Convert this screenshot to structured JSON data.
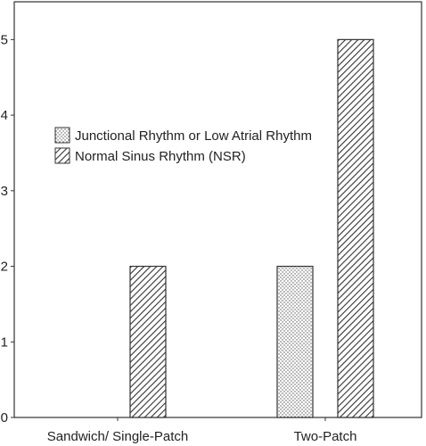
{
  "chart_data": {
    "type": "bar",
    "categories": [
      "Sandwich/ Single-Patch",
      "Two-Patch"
    ],
    "series": [
      {
        "name": "Junctional Rhythm or Low Atrial Rhythm",
        "values": [
          0,
          2
        ],
        "pattern": "dotted"
      },
      {
        "name": "Normal Sinus Rhythm (NSR)",
        "values": [
          2,
          5
        ],
        "pattern": "diagonal-hatch"
      }
    ],
    "y_ticks": [
      "0",
      "1",
      "2",
      "3",
      "4",
      "5"
    ],
    "ylim": [
      0,
      5.5
    ],
    "grid": false,
    "legend_position": "center-left",
    "colors": {
      "bar_fill": "#ffffff",
      "stroke": "#333333",
      "background": "#ffffff"
    }
  }
}
